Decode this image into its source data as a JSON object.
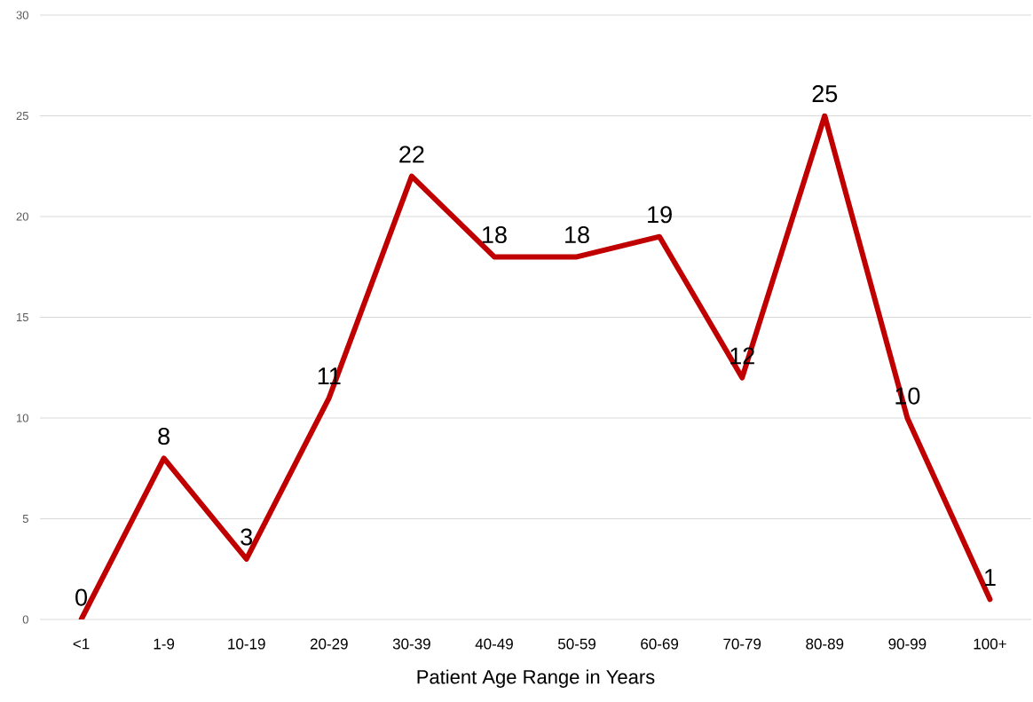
{
  "chart_data": {
    "type": "line",
    "xlabel": "Patient Age Range in Years",
    "categories": [
      "<1",
      "1-9",
      "10-19",
      "20-29",
      "30-39",
      "40-49",
      "50-59",
      "60-69",
      "70-79",
      "80-89",
      "90-99",
      "100+"
    ],
    "series": [
      {
        "color": "#c00000",
        "values": [
          0,
          8,
          3,
          11,
          22,
          18,
          18,
          19,
          12,
          25,
          10,
          1
        ]
      }
    ],
    "ylim": [
      0,
      30
    ],
    "yticks": [
      0,
      5,
      10,
      15,
      20,
      25,
      30
    ],
    "grid": "y",
    "data_labels": true,
    "line_style": "solid"
  }
}
